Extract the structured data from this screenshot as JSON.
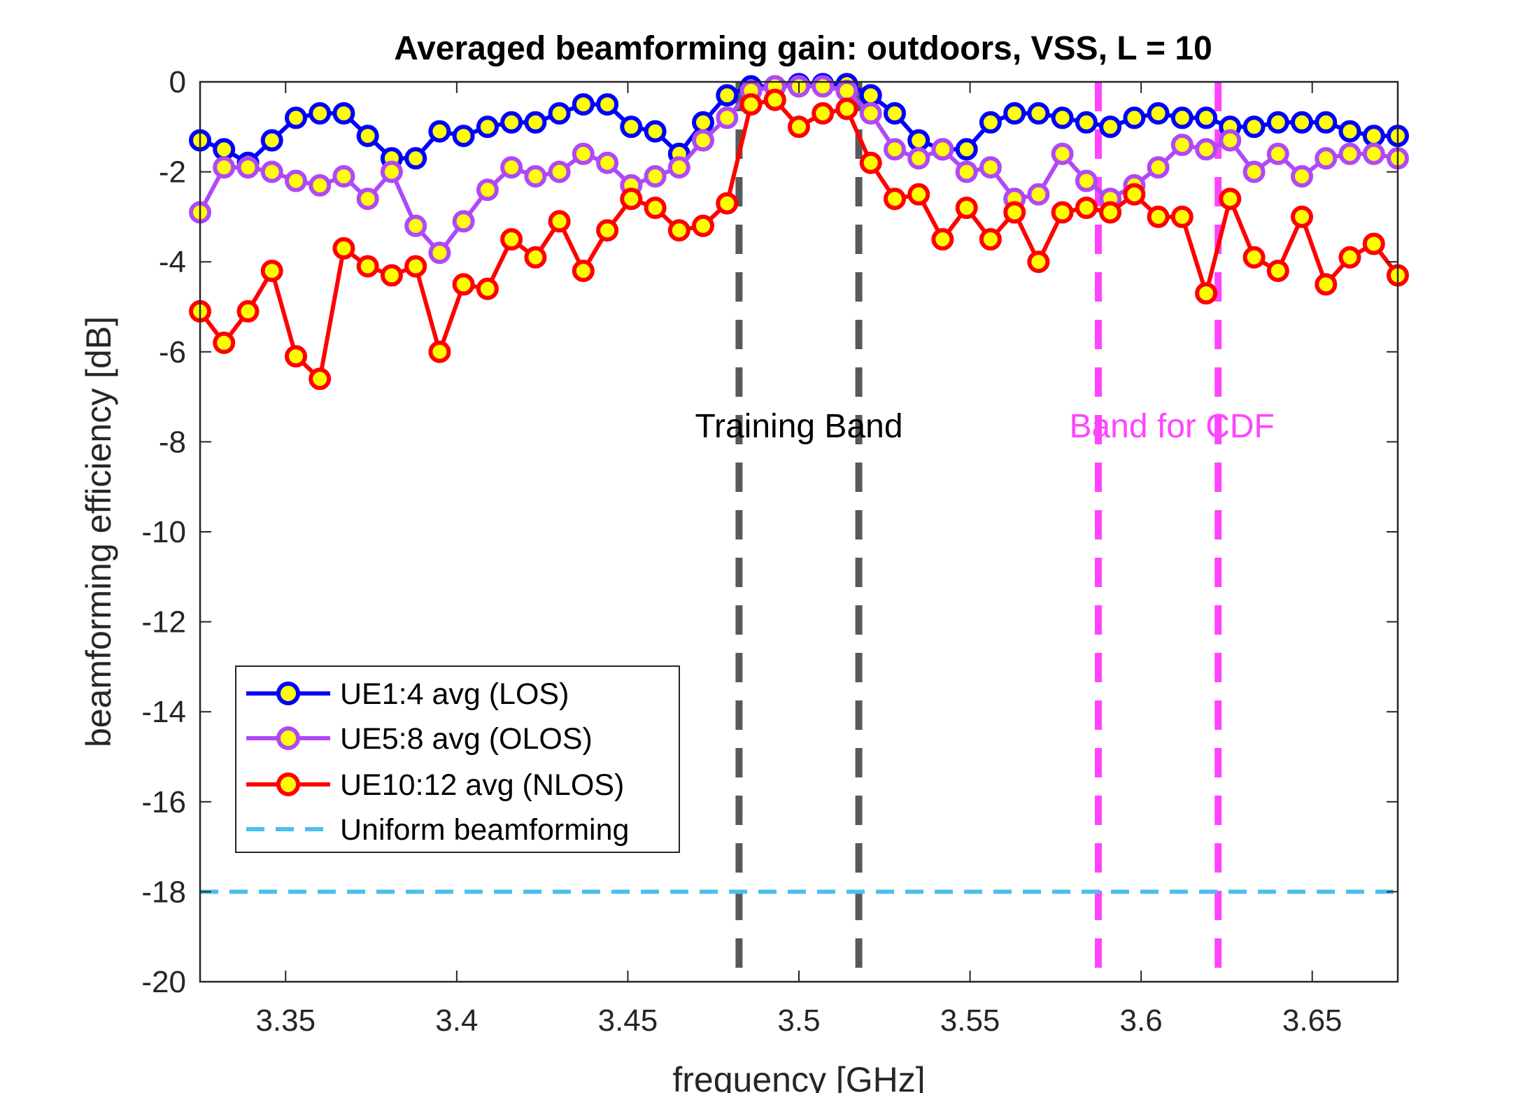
{
  "chart_data": {
    "type": "line",
    "title": "Averaged beamforming gain: outdoors, VSS, L = 10",
    "xlabel": "frequency [GHz]",
    "ylabel": "beamforming efficiency [dB]",
    "xlim": [
      3.325,
      3.675
    ],
    "ylim": [
      -20,
      0
    ],
    "xticks": [
      3.35,
      3.4,
      3.45,
      3.5,
      3.55,
      3.6,
      3.65
    ],
    "xtick_labels": [
      "3.35",
      "3.4",
      "3.45",
      "3.5",
      "3.55",
      "3.6",
      "3.65"
    ],
    "yticks": [
      0,
      -2,
      -4,
      -6,
      -8,
      -10,
      -12,
      -14,
      -16,
      -18,
      -20
    ],
    "ytick_labels": [
      "0",
      "-2",
      "-4",
      "-6",
      "-8",
      "-10",
      "-12",
      "-14",
      "-16",
      "-18",
      "-20"
    ],
    "x": [
      3.325,
      3.332,
      3.339,
      3.346,
      3.353,
      3.36,
      3.367,
      3.374,
      3.381,
      3.388,
      3.395,
      3.402,
      3.409,
      3.416,
      3.423,
      3.43,
      3.437,
      3.444,
      3.451,
      3.458,
      3.465,
      3.472,
      3.479,
      3.486,
      3.493,
      3.5,
      3.507,
      3.514,
      3.521,
      3.528,
      3.535,
      3.542,
      3.549,
      3.556,
      3.563,
      3.57,
      3.577,
      3.584,
      3.591,
      3.598,
      3.605,
      3.612,
      3.619,
      3.626,
      3.633,
      3.64,
      3.647,
      3.654,
      3.661,
      3.668,
      3.675
    ],
    "series": [
      {
        "name": "UE1:4 avg (LOS)",
        "color": "#0000ff",
        "marker_face": "#ffff00",
        "values": [
          -1.3,
          -1.5,
          -1.8,
          -1.3,
          -0.8,
          -0.7,
          -0.7,
          -1.2,
          -1.7,
          -1.7,
          -1.1,
          -1.2,
          -1.0,
          -0.9,
          -0.9,
          -0.7,
          -0.5,
          -0.5,
          -1.0,
          -1.1,
          -1.6,
          -0.9,
          -0.3,
          -0.1,
          -0.1,
          -0.05,
          -0.05,
          -0.05,
          -0.3,
          -0.7,
          -1.3,
          -1.5,
          -1.5,
          -0.9,
          -0.7,
          -0.7,
          -0.8,
          -0.9,
          -1.0,
          -0.8,
          -0.7,
          -0.8,
          -0.8,
          -1.0,
          -1.0,
          -0.9,
          -0.9,
          -0.9,
          -1.1,
          -1.2,
          -1.2
        ]
      },
      {
        "name": "UE5:8 avg (OLOS)",
        "color": "#b048f8",
        "marker_face": "#ffff00",
        "values": [
          -2.9,
          -1.9,
          -1.9,
          -2.0,
          -2.2,
          -2.3,
          -2.1,
          -2.6,
          -2.0,
          -3.2,
          -3.8,
          -3.1,
          -2.4,
          -1.9,
          -2.1,
          -2.0,
          -1.6,
          -1.8,
          -2.3,
          -2.1,
          -1.9,
          -1.3,
          -0.8,
          -0.2,
          -0.1,
          -0.1,
          -0.1,
          -0.2,
          -0.7,
          -1.5,
          -1.7,
          -1.5,
          -2.0,
          -1.9,
          -2.6,
          -2.5,
          -1.6,
          -2.2,
          -2.6,
          -2.3,
          -1.9,
          -1.4,
          -1.5,
          -1.3,
          -2.0,
          -1.6,
          -2.1,
          -1.7,
          -1.6,
          -1.6,
          -1.7
        ]
      },
      {
        "name": "UE10:12 avg (NLOS)",
        "color": "#ff0000",
        "marker_face": "#ffff00",
        "values": [
          -5.1,
          -5.8,
          -5.1,
          -4.2,
          -6.1,
          -6.6,
          -3.7,
          -4.1,
          -4.3,
          -4.1,
          -6.0,
          -4.5,
          -4.6,
          -3.5,
          -3.9,
          -3.1,
          -4.2,
          -3.3,
          -2.6,
          -2.8,
          -3.3,
          -3.2,
          -2.7,
          -0.5,
          -0.4,
          -1.0,
          -0.7,
          -0.6,
          -1.8,
          -2.6,
          -2.5,
          -3.5,
          -2.8,
          -3.5,
          -2.9,
          -4.0,
          -2.9,
          -2.8,
          -2.9,
          -2.5,
          -3.0,
          -3.0,
          -4.7,
          -2.6,
          -3.9,
          -4.2,
          -3.0,
          -4.5,
          -3.9,
          -3.6,
          -4.3
        ]
      },
      {
        "name": "Uniform beamforming",
        "color": "#4dbeee",
        "dashed": true,
        "values_const": -18
      }
    ],
    "vlines": [
      {
        "x": 3.4825,
        "color": "#595959",
        "group": "training"
      },
      {
        "x": 3.5175,
        "color": "#595959",
        "group": "training"
      },
      {
        "x": 3.5875,
        "color": "#ff44ff",
        "group": "cdf"
      },
      {
        "x": 3.6225,
        "color": "#ff44ff",
        "group": "cdf"
      }
    ],
    "annotations": [
      {
        "text": "Training Band",
        "x": 3.5,
        "y": -7.9,
        "color": "#000000"
      },
      {
        "text": "Band for CDF",
        "x": 3.609,
        "y": -7.9,
        "color": "#ff44ff"
      }
    ],
    "legend_position": "lower-left",
    "grid": false
  }
}
